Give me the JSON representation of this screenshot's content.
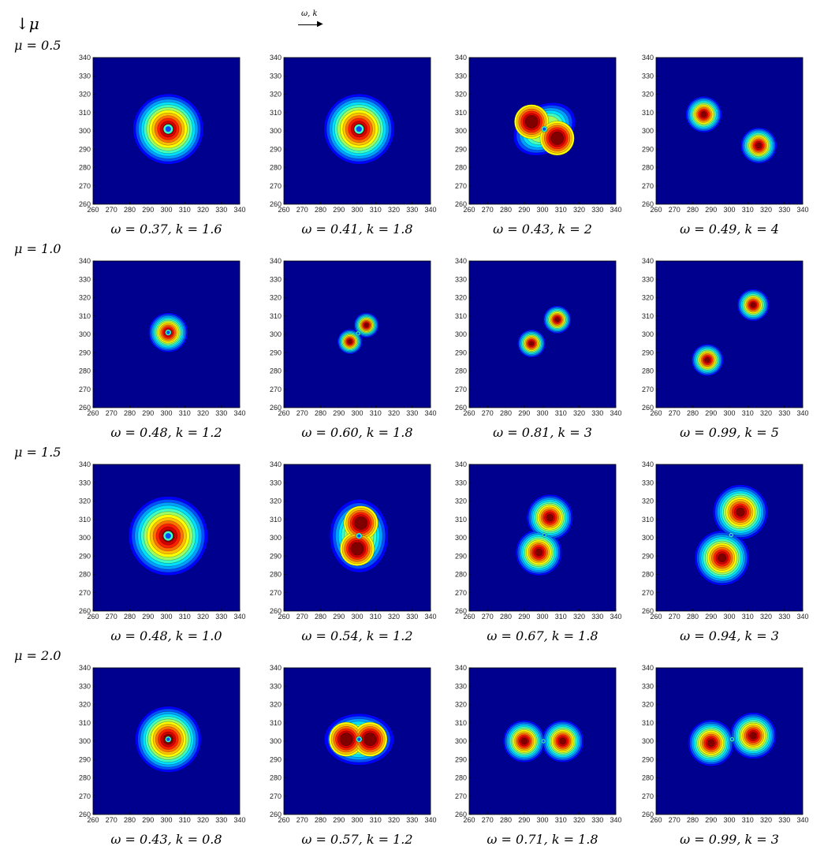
{
  "header": {
    "mu_arrow": "↓μ",
    "omega_k_arrow": "ω, k",
    "arrow_glyph": "⟶"
  },
  "chart_data": {
    "type": "contour",
    "axis": {
      "xlim": [
        260,
        340
      ],
      "ylim": [
        260,
        340
      ],
      "xticks": [
        260,
        270,
        280,
        290,
        300,
        310,
        320,
        330,
        340
      ],
      "yticks": [
        260,
        270,
        280,
        290,
        300,
        310,
        320,
        330,
        340
      ],
      "grid": false
    },
    "colormap": {
      "background": "#00008f",
      "levels": [
        "#0000ff",
        "#0050ff",
        "#00a0ff",
        "#00e0ff",
        "#40ffc0",
        "#a0ff60",
        "#ffff00",
        "#ffc000",
        "#ff7000",
        "#ff2000",
        "#d00000",
        "#800000"
      ]
    },
    "rows": [
      {
        "label": "μ = 0.5",
        "panels": [
          {
            "caption": "ω = 0.37, k = 1.6",
            "type": "ring",
            "cx": 301,
            "cy": 301,
            "r": 16,
            "core": 2
          },
          {
            "caption": "ω = 0.41, k = 1.8",
            "type": "ring",
            "cx": 301,
            "cy": 301,
            "r": 16,
            "core": 2
          },
          {
            "caption": "ω = 0.43, k = 2",
            "type": "ellipse2",
            "blobs": [
              [
                294,
                305,
                9
              ],
              [
                308,
                296,
                9
              ]
            ],
            "envelope": [
              301,
              301,
              18,
              13,
              -30
            ]
          },
          {
            "caption": "ω = 0.49, k = 4",
            "type": "blobs",
            "blobs": [
              [
                286,
                309,
                9
              ],
              [
                316,
                292,
                9
              ]
            ]
          }
        ]
      },
      {
        "label": "μ = 1.0",
        "panels": [
          {
            "caption": "ω = 0.48, k = 1.2",
            "type": "ring",
            "cx": 301,
            "cy": 301,
            "r": 9,
            "core": 1
          },
          {
            "caption": "ω = 0.60, k = 1.8",
            "type": "pair",
            "blobs": [
              [
                296,
                296,
                6
              ],
              [
                305,
                305,
                6
              ]
            ]
          },
          {
            "caption": "ω = 0.81, k = 3",
            "type": "blobs",
            "blobs": [
              [
                294,
                295,
                7
              ],
              [
                308,
                308,
                7
              ]
            ]
          },
          {
            "caption": "ω = 0.99, k = 5",
            "type": "blobs",
            "blobs": [
              [
                288,
                286,
                8
              ],
              [
                313,
                316,
                8
              ]
            ]
          }
        ]
      },
      {
        "label": "μ = 1.5",
        "panels": [
          {
            "caption": "ω = 0.48, k = 1.0",
            "type": "ring",
            "cx": 301,
            "cy": 301,
            "r": 18,
            "core": 2
          },
          {
            "caption": "ω = 0.54, k = 1.2",
            "type": "ellipse2",
            "blobs": [
              [
                302,
                308,
                9
              ],
              [
                300,
                294,
                9
              ]
            ],
            "envelope": [
              301,
              301,
              16,
              20,
              0
            ]
          },
          {
            "caption": "ω = 0.67, k = 1.8",
            "type": "pair",
            "blobs": [
              [
                304,
                311,
                11
              ],
              [
                298,
                292,
                11
              ]
            ]
          },
          {
            "caption": "ω = 0.94, k = 3",
            "type": "pair",
            "blobs": [
              [
                306,
                314,
                13
              ],
              [
                296,
                289,
                13
              ]
            ]
          }
        ]
      },
      {
        "label": "μ = 2.0",
        "panels": [
          {
            "caption": "ω = 0.43, k = 0.8",
            "type": "ring",
            "cx": 301,
            "cy": 301,
            "r": 15,
            "core": 1
          },
          {
            "caption": "ω = 0.57, k = 1.2",
            "type": "ellipse2",
            "blobs": [
              [
                294,
                301,
                9
              ],
              [
                307,
                301,
                9
              ]
            ],
            "envelope": [
              301,
              301,
              19,
              14,
              0
            ]
          },
          {
            "caption": "ω = 0.71, k = 1.8",
            "type": "pair",
            "blobs": [
              [
                290,
                300,
                10
              ],
              [
                311,
                300,
                10
              ]
            ]
          },
          {
            "caption": "ω = 0.99, k = 3",
            "type": "pair",
            "blobs": [
              [
                290,
                299,
                11
              ],
              [
                313,
                303,
                11
              ]
            ]
          }
        ]
      }
    ]
  }
}
